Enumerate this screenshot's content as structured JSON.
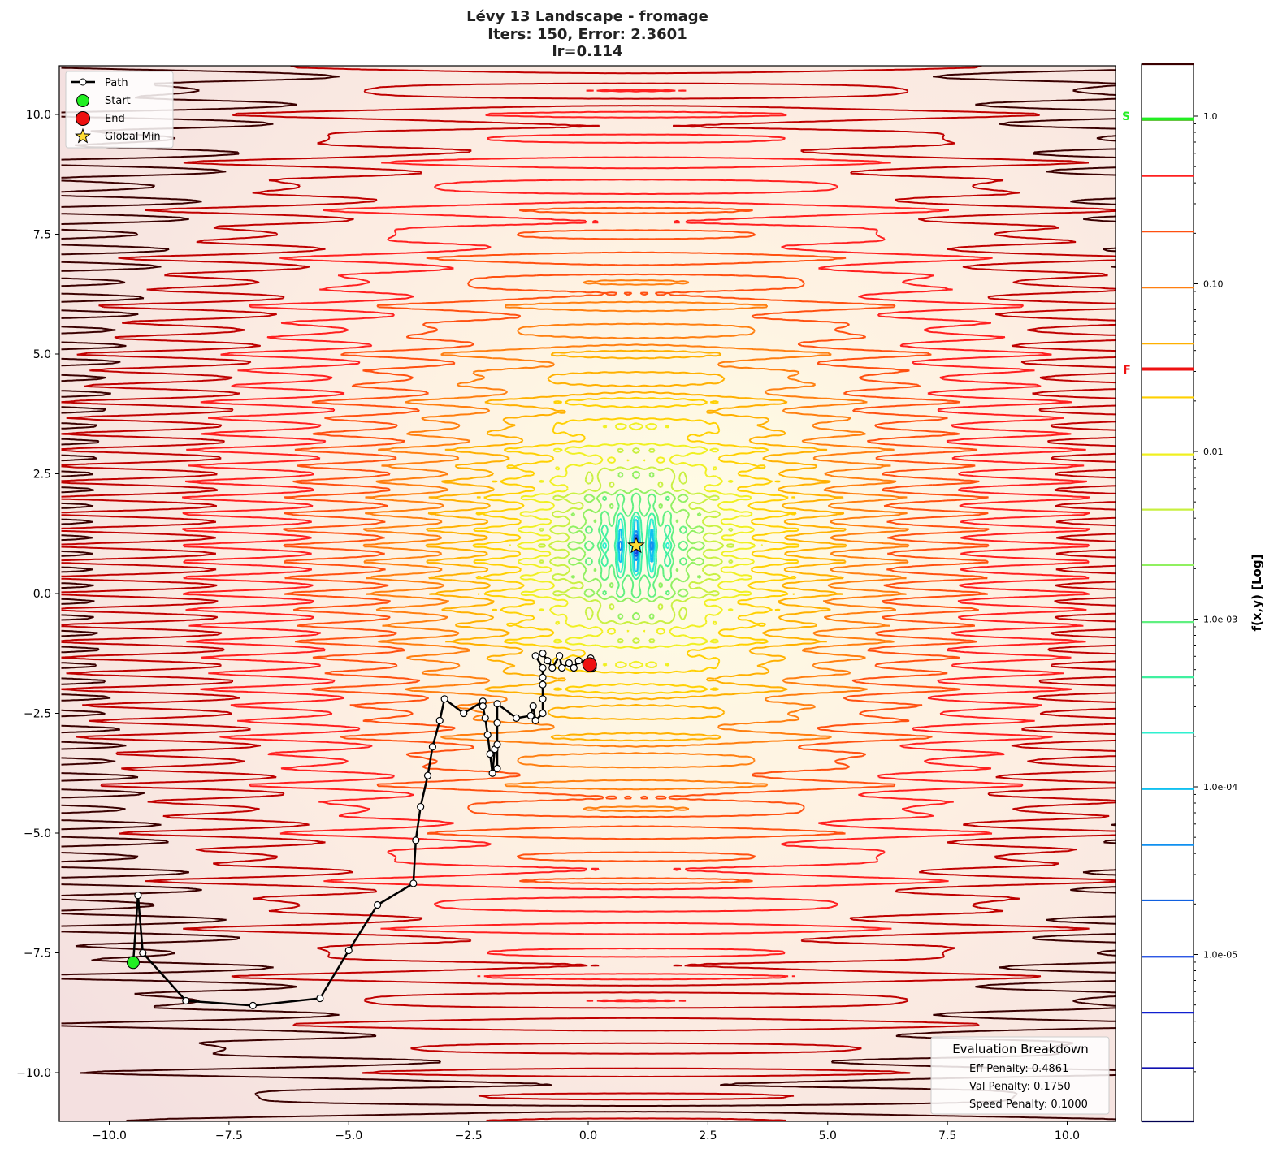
{
  "title": {
    "line1": "Lévy 13 Landscape - fromage",
    "line2": "Iters: 150, Error: 2.3601",
    "line3": "lr=0.114"
  },
  "legend": {
    "path": "Path",
    "start": "Start",
    "end": "End",
    "global_min": "Global Min"
  },
  "evaluation": {
    "title": "Evaluation Breakdown",
    "eff": "Eff Penalty: 0.4861",
    "val": "Val Penalty: 0.1750",
    "speed": "Speed Penalty: 0.1000"
  },
  "chart_data": {
    "type": "contour",
    "function": "Lévy 13",
    "xlim": [
      -11,
      11.05
    ],
    "ylim": [
      -11,
      11.05
    ],
    "xticks": [
      "−10.0",
      "−7.5",
      "−5.0",
      "−2.5",
      "0.0",
      "2.5",
      "5.0",
      "7.5",
      "10.0"
    ],
    "xtick_values": [
      -10,
      -7.5,
      -5,
      -2.5,
      0,
      2.5,
      5,
      7.5,
      10
    ],
    "yticks": [
      "−10.0",
      "−7.5",
      "−5.0",
      "−2.5",
      "0.0",
      "2.5",
      "5.0",
      "7.5",
      "10.0"
    ],
    "ytick_values": [
      -10,
      -7.5,
      -5,
      -2.5,
      0,
      2.5,
      5,
      7.5,
      10
    ],
    "grid": false,
    "legend_position": "top-left",
    "global_min": [
      1,
      1
    ],
    "path": [
      [
        -9.5,
        -7.7
      ],
      [
        -9.4,
        -6.3
      ],
      [
        -9.3,
        -7.5
      ],
      [
        -8.4,
        -8.5
      ],
      [
        -7.0,
        -8.6
      ],
      [
        -5.6,
        -8.45
      ],
      [
        -5.0,
        -7.45
      ],
      [
        -4.4,
        -6.5
      ],
      [
        -3.65,
        -6.05
      ],
      [
        -3.6,
        -5.15
      ],
      [
        -3.5,
        -4.45
      ],
      [
        -3.35,
        -3.8
      ],
      [
        -3.25,
        -3.2
      ],
      [
        -3.1,
        -2.65
      ],
      [
        -3.0,
        -2.2
      ],
      [
        -2.6,
        -2.5
      ],
      [
        -2.2,
        -2.25
      ],
      [
        -2.2,
        -2.35
      ],
      [
        -2.15,
        -2.6
      ],
      [
        -2.1,
        -2.95
      ],
      [
        -2.05,
        -3.35
      ],
      [
        -2.0,
        -3.75
      ],
      [
        -1.95,
        -3.25
      ],
      [
        -1.9,
        -3.15
      ],
      [
        -1.9,
        -3.65
      ],
      [
        -1.9,
        -2.7
      ],
      [
        -1.9,
        -2.3
      ],
      [
        -1.5,
        -2.6
      ],
      [
        -1.2,
        -2.55
      ],
      [
        -1.15,
        -2.35
      ],
      [
        -1.1,
        -2.65
      ],
      [
        -0.95,
        -2.5
      ],
      [
        -0.95,
        -2.2
      ],
      [
        -0.95,
        -1.9
      ],
      [
        -0.95,
        -1.75
      ],
      [
        -0.95,
        -1.55
      ],
      [
        -1.1,
        -1.3
      ],
      [
        -0.95,
        -1.25
      ],
      [
        -0.85,
        -1.4
      ],
      [
        -0.75,
        -1.55
      ],
      [
        -0.6,
        -1.3
      ],
      [
        -0.55,
        -1.55
      ],
      [
        -0.4,
        -1.45
      ],
      [
        -0.3,
        -1.55
      ],
      [
        -0.2,
        -1.4
      ],
      [
        -0.05,
        -1.45
      ],
      [
        0.05,
        -1.35
      ],
      [
        0.1,
        -1.55
      ],
      [
        0.03,
        -1.48
      ]
    ],
    "colorbar": {
      "label": "f(x,y) [Log]",
      "scale": "log",
      "range": [
        1e-06,
        2.04
      ],
      "ticks": [
        "1.0",
        "0.10",
        "0.01",
        "1.0e-03",
        "1.0e-04",
        "1.0e-05"
      ],
      "tick_values": [
        1,
        0.1,
        0.01,
        0.001,
        0.0001,
        1e-05
      ],
      "levels": [
        2.04,
        0.95,
        0.44,
        0.205,
        0.095,
        0.044,
        0.021,
        0.0096,
        0.0045,
        0.0021,
        0.00096,
        0.00045,
        0.00021,
        9.7e-05,
        4.5e-05,
        2.1e-05,
        9.7e-06,
        4.5e-06,
        2.1e-06,
        9.8e-07
      ],
      "level_colors": [
        "#3a0000",
        "#c00000",
        "#ff2020",
        "#ff5010",
        "#ff7f10",
        "#ffb000",
        "#ffd000",
        "#f0f020",
        "#c8f040",
        "#90f060",
        "#60f080",
        "#40f0a0",
        "#30f0d0",
        "#10c0f0",
        "#1090f0",
        "#1060e0",
        "#1040e0",
        "#1020d0",
        "#1010b0",
        "#000050"
      ],
      "start_marker": {
        "label": "S",
        "value": 0.96,
        "color": "#22ee22"
      },
      "final_marker": {
        "label": "F",
        "value": 0.031,
        "color": "#ee1111"
      }
    },
    "colors": {
      "path": "#000000",
      "start": "#22ee22",
      "end": "#ee1111",
      "global_min": "#ffdd33"
    }
  }
}
